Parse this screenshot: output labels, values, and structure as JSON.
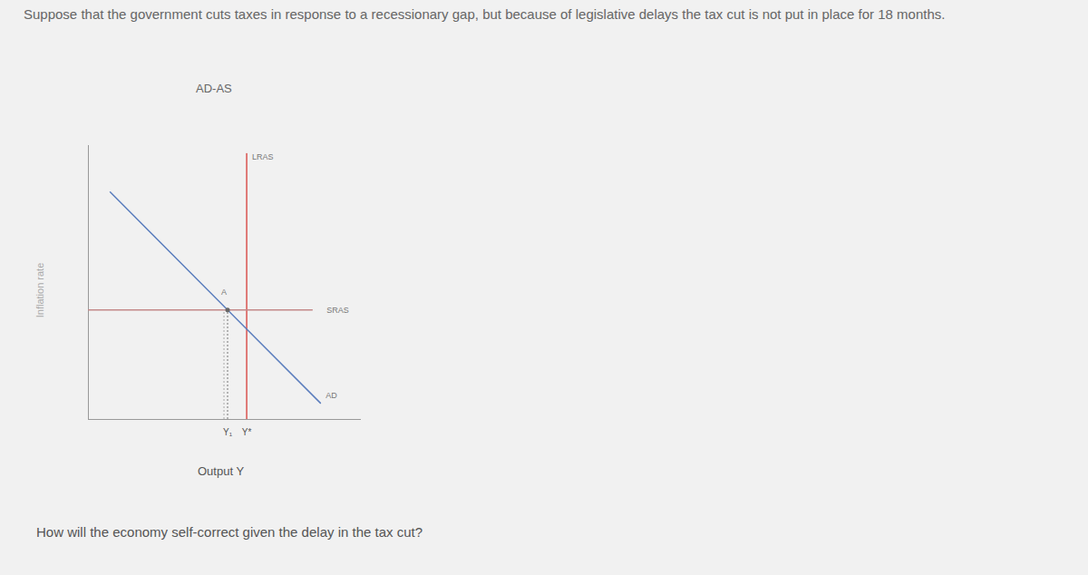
{
  "chart_data": {
    "type": "line",
    "title": "AD-AS",
    "x_label": "Output Y",
    "y_label": "Inflation rate",
    "xlim": [
      0,
      10
    ],
    "ylim": [
      0,
      10
    ],
    "xticks": [
      {
        "value": 5.1,
        "label": "Y₁"
      },
      {
        "value": 5.8,
        "label": "Y*"
      }
    ],
    "tick_labels": "x",
    "grid": false,
    "series": [
      {
        "name": "LRAS",
        "color": "#d9534f",
        "x": [
          5.8,
          5.8
        ],
        "values": [
          0,
          9.7
        ]
      },
      {
        "name": "SRAS",
        "color": "#c48a8a",
        "x": [
          0,
          8.2
        ],
        "values": [
          4.0,
          4.0
        ]
      },
      {
        "name": "AD",
        "color": "#5a7dbd",
        "x": [
          0.8,
          8.5
        ],
        "values": [
          8.3,
          0.6
        ]
      }
    ],
    "points": [
      {
        "label": "A",
        "x": 5.1,
        "y": 4.0
      }
    ]
  },
  "text": {
    "prompt": "Suppose that the government cuts taxes in response to a recessionary gap, but because of legislative delays the tax cut is not put in place for 18 months.",
    "question": "How will the economy self-correct given the delay in the tax cut?"
  }
}
